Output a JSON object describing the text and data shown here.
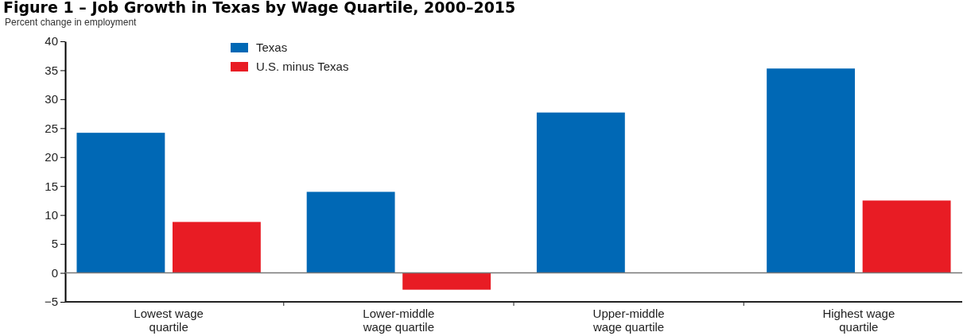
{
  "chart_data": {
    "type": "bar",
    "title": "Figure 1 – Job Growth in Texas by Wage Quartile, 2000–2015",
    "ylabel": "Percent change in employment",
    "categories": [
      "Lowest wage quartile",
      "Lower-middle wage quartile",
      "Upper-middle wage quartile",
      "Highest wage quartile"
    ],
    "series": [
      {
        "name": "Texas",
        "color": "#0068b5",
        "values": [
          24.2,
          14.0,
          27.7,
          35.3
        ]
      },
      {
        "name": "U.S. minus Texas",
        "color": "#e81c24",
        "values": [
          8.8,
          -2.9,
          null,
          12.5
        ]
      }
    ],
    "ylim": [
      -5,
      40
    ],
    "yticks": [
      {
        "value": -5,
        "label": "−5"
      },
      0,
      5,
      10,
      15,
      20,
      25,
      30,
      35,
      40
    ],
    "legend": "top left"
  }
}
